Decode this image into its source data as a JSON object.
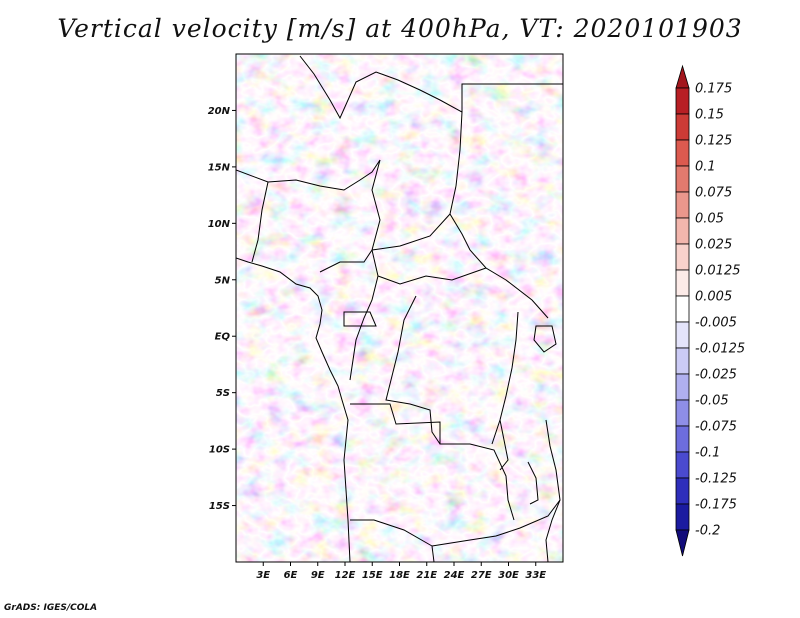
{
  "title": "Vertical velocity [m/s] at 400hPa, VT: 2020101903",
  "footer": "GrADS: IGES/COLA",
  "map": {
    "lon_range": [
      0,
      36
    ],
    "lat_range": [
      -20,
      25
    ],
    "lat_ticks": [
      {
        "value": 20,
        "label": "20N"
      },
      {
        "value": 15,
        "label": "15N"
      },
      {
        "value": 10,
        "label": "10N"
      },
      {
        "value": 5,
        "label": "5N"
      },
      {
        "value": 0,
        "label": "EQ"
      },
      {
        "value": -5,
        "label": "5S"
      },
      {
        "value": -10,
        "label": "10S"
      },
      {
        "value": -15,
        "label": "15S"
      }
    ],
    "lon_ticks": [
      {
        "value": 3,
        "label": "3E"
      },
      {
        "value": 6,
        "label": "6E"
      },
      {
        "value": 9,
        "label": "9E"
      },
      {
        "value": 12,
        "label": "12E"
      },
      {
        "value": 15,
        "label": "15E"
      },
      {
        "value": 18,
        "label": "18E"
      },
      {
        "value": 21,
        "label": "21E"
      },
      {
        "value": 24,
        "label": "24E"
      },
      {
        "value": 27,
        "label": "27E"
      },
      {
        "value": 30,
        "label": "30E"
      },
      {
        "value": 33,
        "label": "33E"
      }
    ]
  },
  "colorbar": {
    "labels": [
      "0.175",
      "0.15",
      "0.125",
      "0.1",
      "0.075",
      "0.05",
      "0.025",
      "0.0125",
      "0.005",
      "-0.005",
      "-0.0125",
      "-0.025",
      "-0.05",
      "-0.075",
      "-0.1",
      "-0.125",
      "-0.175",
      "-0.2"
    ],
    "colors": [
      "#a3161d",
      "#b81f24",
      "#cd3b36",
      "#dc5a4f",
      "#e27a6e",
      "#ea978c",
      "#f2b6ad",
      "#f8d2cc",
      "#fcebe8",
      "#ffffff",
      "#e4e4fb",
      "#cbcbf5",
      "#b0b0ef",
      "#8e8ee7",
      "#6d6ddd",
      "#4a4acf",
      "#2e2ebb",
      "#1b1ba0",
      "#120c7a"
    ]
  }
}
